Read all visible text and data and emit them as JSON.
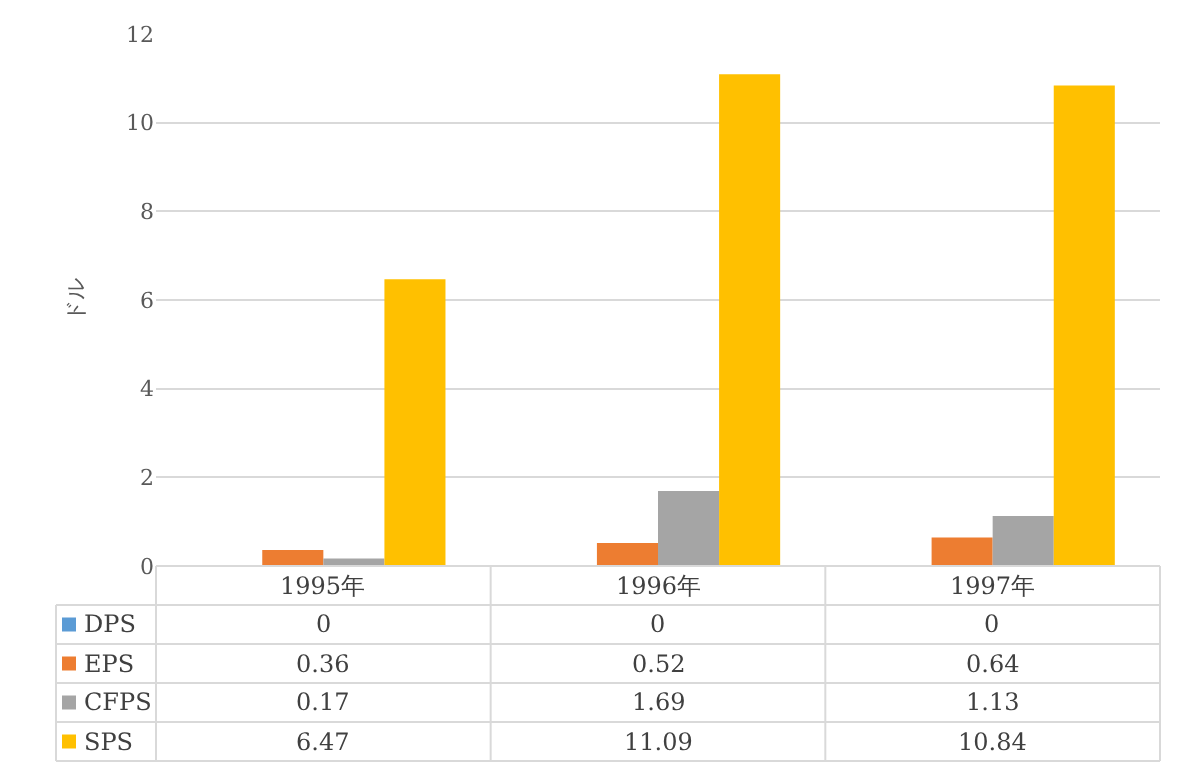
{
  "chart_data": {
    "type": "bar",
    "ylabel": "ドル",
    "categories": [
      "1995年",
      "1996年",
      "1997年"
    ],
    "series": [
      {
        "name": "DPS",
        "color": "#5b9bd5",
        "values": [
          0,
          0,
          0
        ]
      },
      {
        "name": "EPS",
        "color": "#ed7d31",
        "values": [
          0.36,
          0.52,
          0.64
        ]
      },
      {
        "name": "CFPS",
        "color": "#a5a5a5",
        "values": [
          0.17,
          1.69,
          1.13
        ]
      },
      {
        "name": "SPS",
        "color": "#ffc000",
        "values": [
          6.47,
          11.09,
          10.84
        ]
      }
    ],
    "ylim": [
      0,
      12
    ],
    "yticks": [
      0,
      2,
      4,
      6,
      8,
      10,
      12
    ],
    "grid": "y",
    "legend": "bottom",
    "data_labels": true
  }
}
